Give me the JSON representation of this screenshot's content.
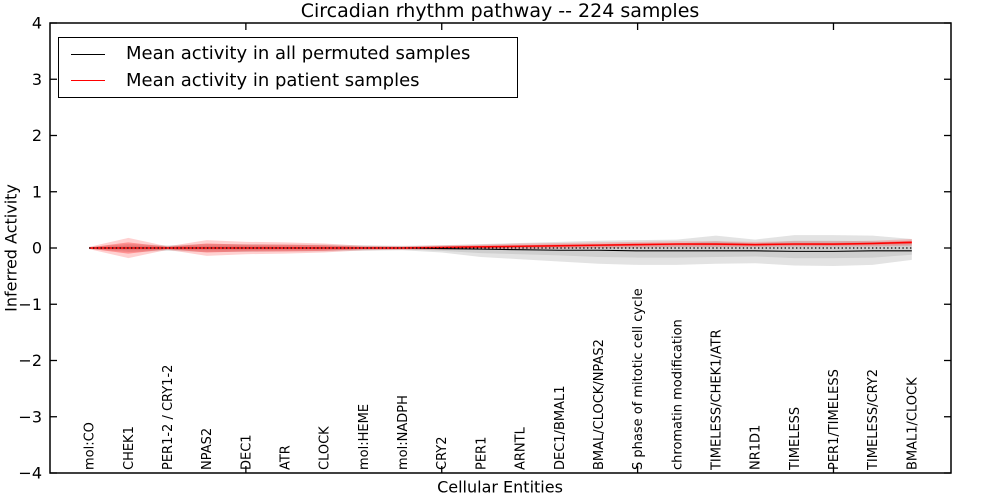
{
  "title": "Circadian rhythm pathway -- 224 samples",
  "legend": {
    "items": [
      {
        "label": "Mean activity in all permuted samples",
        "color": "#000000"
      },
      {
        "label": "Mean activity in patient samples",
        "color": "#ff0000"
      }
    ]
  },
  "chart_data": {
    "type": "line",
    "title": "Circadian rhythm pathway -- 224 samples",
    "xlabel": "Cellular Entities",
    "ylabel": "Inferred Activity",
    "ylim": [
      -4,
      4
    ],
    "xlim": [
      0,
      23
    ],
    "yticks": [
      -4,
      -3,
      -2,
      -1,
      0,
      1,
      2,
      3,
      4
    ],
    "xticks_numeric": [
      5,
      10,
      15,
      20
    ],
    "grid": false,
    "legend_position": "upper left",
    "categories": [
      "mol:CO",
      "CHEK1",
      "PER1-2 / CRY1-2",
      "NPAS2",
      "DEC1",
      "ATR",
      "CLOCK",
      "mol:HEME",
      "mol:NADPH",
      "CRY2",
      "PER1",
      "ARNTL",
      "DEC1/BMAL1",
      "BMAL/CLOCK/NPAS2",
      "S phase of mitotic cell cycle",
      "chromatin modification",
      "TIMELESS/CHEK1/ATR",
      "NR1D1",
      "TIMELESS",
      "PER1/TIMELESS",
      "TIMELESS/CRY2",
      "BMAL1/CLOCK"
    ],
    "category_x": [
      1,
      2,
      3,
      4,
      5,
      6,
      7,
      8,
      9,
      10,
      11,
      12,
      13,
      14,
      15,
      16,
      17,
      18,
      19,
      20,
      21,
      22
    ],
    "bands": [
      {
        "name": "permuted-range",
        "color": "#999999",
        "opacity": 0.28,
        "upper": [
          0.02,
          0.07,
          0.05,
          0.07,
          0.07,
          0.06,
          0.06,
          0.05,
          0.04,
          0.05,
          0.07,
          0.09,
          0.11,
          0.13,
          0.14,
          0.15,
          0.22,
          0.15,
          0.23,
          0.23,
          0.22,
          0.16
        ],
        "lower": [
          -0.02,
          -0.07,
          -0.05,
          -0.07,
          -0.07,
          -0.06,
          -0.06,
          -0.05,
          -0.04,
          -0.08,
          -0.16,
          -0.2,
          -0.24,
          -0.28,
          -0.3,
          -0.3,
          -0.28,
          -0.27,
          -0.31,
          -0.32,
          -0.3,
          -0.21
        ]
      },
      {
        "name": "permuted-inner",
        "color": "#999999",
        "opacity": 0.28,
        "upper": [
          0.01,
          0.04,
          0.03,
          0.04,
          0.04,
          0.03,
          0.03,
          0.03,
          0.02,
          0.03,
          0.04,
          0.05,
          0.06,
          0.07,
          0.08,
          0.08,
          0.12,
          0.08,
          0.13,
          0.13,
          0.12,
          0.09
        ],
        "lower": [
          -0.01,
          -0.04,
          -0.03,
          -0.04,
          -0.04,
          -0.03,
          -0.03,
          -0.03,
          -0.02,
          -0.05,
          -0.09,
          -0.11,
          -0.13,
          -0.16,
          -0.17,
          -0.17,
          -0.16,
          -0.15,
          -0.18,
          -0.18,
          -0.17,
          -0.12
        ]
      },
      {
        "name": "patient-range",
        "color": "#ff0000",
        "opacity": 0.18,
        "upper": [
          0.02,
          0.18,
          0.03,
          0.14,
          0.11,
          0.1,
          0.08,
          0.04,
          0.03,
          0.05,
          0.06,
          0.08,
          0.09,
          0.1,
          0.11,
          0.12,
          0.12,
          0.11,
          0.12,
          0.12,
          0.13,
          0.16
        ],
        "lower": [
          -0.02,
          -0.18,
          -0.03,
          -0.14,
          -0.11,
          -0.1,
          -0.08,
          -0.04,
          -0.03,
          -0.03,
          -0.02,
          -0.02,
          -0.01,
          0.0,
          0.01,
          0.02,
          0.02,
          0.02,
          0.03,
          0.03,
          0.03,
          0.04
        ]
      },
      {
        "name": "patient-inner",
        "color": "#ff0000",
        "opacity": 0.3,
        "upper": [
          0.01,
          0.1,
          0.02,
          0.08,
          0.06,
          0.06,
          0.05,
          0.02,
          0.02,
          0.03,
          0.04,
          0.05,
          0.06,
          0.07,
          0.08,
          0.09,
          0.09,
          0.08,
          0.09,
          0.09,
          0.1,
          0.13
        ],
        "lower": [
          -0.01,
          -0.1,
          -0.02,
          -0.08,
          -0.06,
          -0.06,
          -0.05,
          -0.02,
          -0.02,
          -0.01,
          0.0,
          0.01,
          0.02,
          0.03,
          0.04,
          0.05,
          0.05,
          0.04,
          0.05,
          0.05,
          0.06,
          0.07
        ]
      }
    ],
    "series": [
      {
        "name": "Mean activity in all permuted samples",
        "color": "#000000",
        "style": "solid",
        "width": 1.1,
        "values": [
          0,
          0,
          0,
          0,
          0,
          0,
          0,
          0,
          0,
          -0.01,
          -0.02,
          -0.03,
          -0.04,
          -0.04,
          -0.05,
          -0.05,
          -0.05,
          -0.05,
          -0.06,
          -0.06,
          -0.05,
          -0.05
        ]
      },
      {
        "name": "Mean activity in patient samples",
        "color": "#ff0000",
        "style": "solid",
        "width": 1.5,
        "values": [
          0,
          0,
          0,
          0,
          0,
          0,
          0,
          0,
          0,
          0.01,
          0.02,
          0.03,
          0.04,
          0.05,
          0.06,
          0.07,
          0.07,
          0.06,
          0.07,
          0.07,
          0.08,
          0.1
        ]
      },
      {
        "name": "zero-reference",
        "color": "#000000",
        "style": "dotted",
        "width": 1.3,
        "values": [
          0,
          0,
          0,
          0,
          0,
          0,
          0,
          0,
          0,
          0,
          0,
          0,
          0,
          0,
          0,
          0,
          0,
          0,
          0,
          0,
          0,
          0
        ]
      }
    ]
  }
}
